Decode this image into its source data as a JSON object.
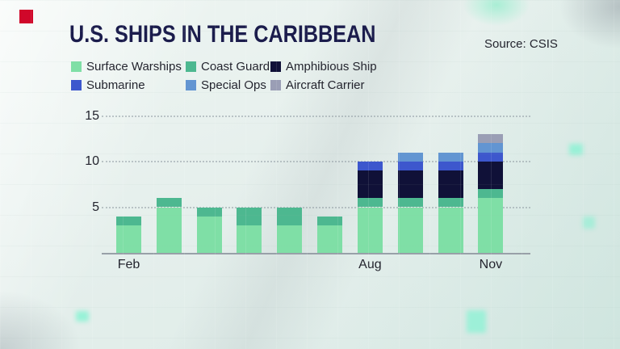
{
  "page": {
    "title": "U.S. SHIPS IN THE CARIBBEAN",
    "source": "Source: CSIS"
  },
  "colors": {
    "brand_red": "#d0072a",
    "title_text": "#1b1c4c",
    "body_text": "#23242e",
    "axis_line": "#98a0a8",
    "gridline": "#929ca4"
  },
  "chart_data": {
    "type": "bar",
    "stacked": true,
    "title": "U.S. SHIPS IN THE CARIBBEAN",
    "source": "Source: CSIS",
    "categories": [
      "Feb",
      "",
      "",
      "",
      "",
      "",
      "Aug",
      "",
      "",
      "Nov"
    ],
    "series": [
      {
        "name": "Surface Warships",
        "color": "#7fdfa6",
        "values": [
          3,
          5,
          4,
          3,
          3,
          3,
          5,
          5,
          5,
          6
        ]
      },
      {
        "name": "Coast Guard",
        "color": "#4db890",
        "values": [
          1,
          1,
          1,
          2,
          2,
          1,
          1,
          1,
          1,
          1
        ]
      },
      {
        "name": "Amphibious Ship",
        "color": "#101138",
        "values": [
          0,
          0,
          0,
          0,
          0,
          0,
          3,
          3,
          3,
          3
        ]
      },
      {
        "name": "Submarine",
        "color": "#3d57cd",
        "values": [
          0,
          0,
          0,
          0,
          0,
          0,
          1,
          1,
          1,
          1
        ]
      },
      {
        "name": "Special Ops",
        "color": "#6295d2",
        "values": [
          0,
          0,
          0,
          0,
          0,
          0,
          0,
          1,
          1,
          1
        ]
      },
      {
        "name": "Aircraft Carrier",
        "color": "#9a9eb5",
        "values": [
          0,
          0,
          0,
          0,
          0,
          0,
          0,
          0,
          0,
          1
        ]
      }
    ],
    "y_ticks": [
      5,
      10,
      15
    ],
    "ylim": [
      0,
      15
    ],
    "grid": "dotted-horizontal",
    "legend_position": "top-left-two-rows"
  }
}
